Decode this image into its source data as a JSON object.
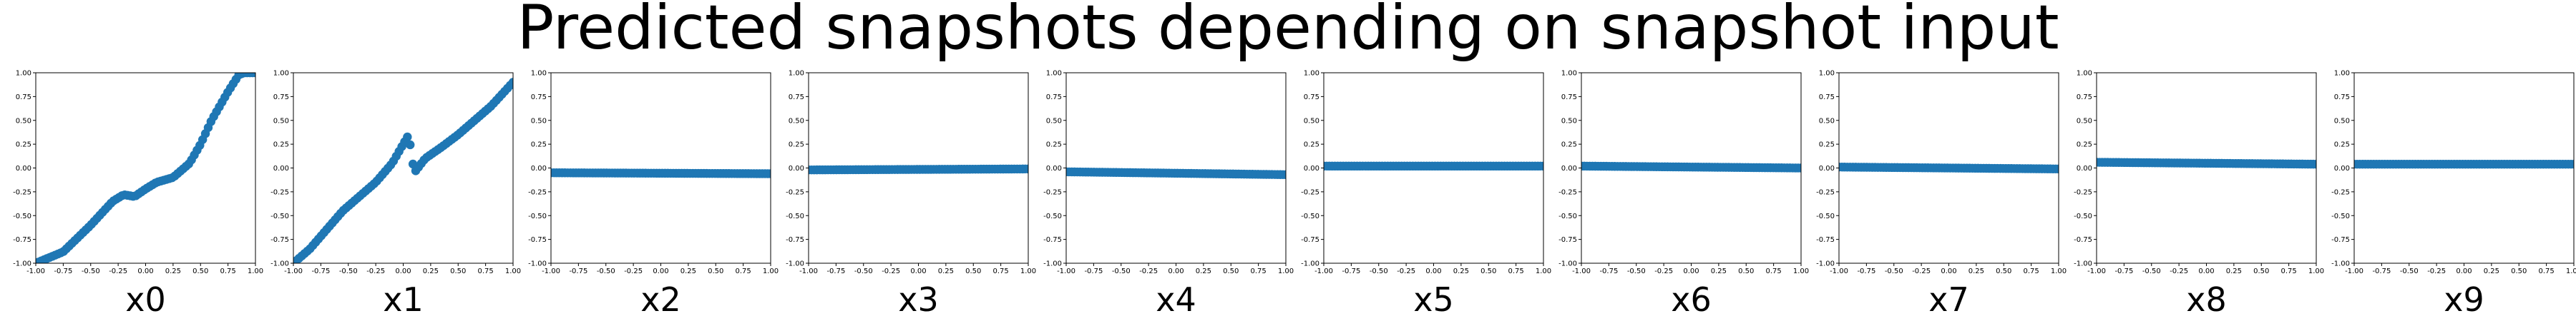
{
  "suptitle": "Predicted snapshots depending on snapshot input",
  "marker_color": "#1f77b4",
  "chart_data": {
    "type": "scatter",
    "n_points": 80,
    "xlim": [
      -1.0,
      1.0
    ],
    "ylim": [
      -1.0,
      1.0
    ],
    "xticks": [
      "-1.00",
      "-0.75",
      "-0.50",
      "-0.25",
      "0.00",
      "0.25",
      "0.50",
      "0.75",
      "1.00"
    ],
    "yticks": [
      "-1.00",
      "-0.75",
      "-0.50",
      "-0.25",
      "0.00",
      "0.25",
      "0.50",
      "0.75",
      "1.00"
    ],
    "panels": [
      {
        "xlabel": "x0",
        "x": [
          -1.0,
          -0.75,
          -0.5,
          -0.3,
          -0.2,
          -0.1,
          0.0,
          0.1,
          0.25,
          0.4,
          0.5,
          0.6,
          0.75,
          0.85,
          0.9,
          1.0
        ],
        "y": [
          -1.0,
          -0.88,
          -0.6,
          -0.35,
          -0.28,
          -0.3,
          -0.22,
          -0.15,
          -0.1,
          0.05,
          0.25,
          0.5,
          0.8,
          0.98,
          1.0,
          1.0
        ]
      },
      {
        "xlabel": "x1",
        "x": [
          -1.0,
          -0.85,
          -0.7,
          -0.55,
          -0.4,
          -0.25,
          -0.1,
          0.0,
          0.05,
          0.1,
          0.2,
          0.35,
          0.5,
          0.65,
          0.8,
          1.0
        ],
        "y": [
          -1.0,
          -0.85,
          -0.65,
          -0.45,
          -0.3,
          -0.15,
          0.05,
          0.25,
          0.35,
          -0.05,
          0.1,
          0.22,
          0.35,
          0.5,
          0.65,
          0.9
        ]
      },
      {
        "xlabel": "x2",
        "x": [
          -1.0,
          1.0
        ],
        "y": [
          -0.05,
          -0.06
        ]
      },
      {
        "xlabel": "x3",
        "x": [
          -1.0,
          1.0
        ],
        "y": [
          -0.02,
          -0.01
        ]
      },
      {
        "xlabel": "x4",
        "x": [
          -1.0,
          1.0
        ],
        "y": [
          -0.04,
          -0.07
        ]
      },
      {
        "xlabel": "x5",
        "x": [
          -1.0,
          1.0
        ],
        "y": [
          0.02,
          0.02
        ]
      },
      {
        "xlabel": "x6",
        "x": [
          -1.0,
          1.0
        ],
        "y": [
          0.02,
          0.0
        ]
      },
      {
        "xlabel": "x7",
        "x": [
          -1.0,
          1.0
        ],
        "y": [
          0.01,
          -0.01
        ]
      },
      {
        "xlabel": "x8",
        "x": [
          -1.0,
          1.0
        ],
        "y": [
          0.06,
          0.04
        ]
      },
      {
        "xlabel": "x9",
        "x": [
          -1.0,
          1.0
        ],
        "y": [
          0.04,
          0.04
        ]
      }
    ]
  }
}
